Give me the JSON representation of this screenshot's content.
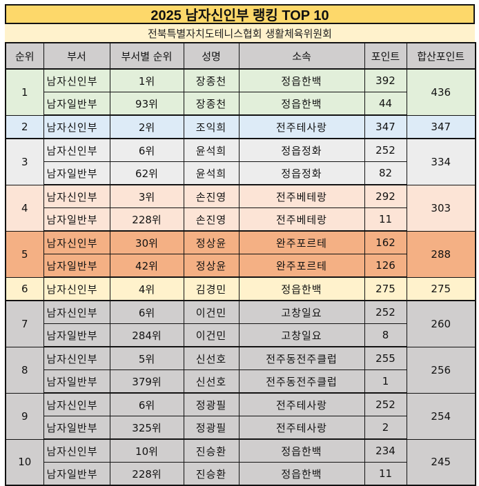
{
  "title": "2025 남자신인부 랭킹 TOP 10",
  "subtitle": "전북특별자치도테니스협회 생활체육위원회",
  "colors": {
    "title_bg": "#fdd86a",
    "subtitle_bg": "#fff2cc",
    "header_bg": "#d0cece",
    "rank1_bg": "#e2efda",
    "rank2_bg": "#ddebf7",
    "rank3_bg": "#ededed",
    "rank4_bg": "#fce4d6",
    "rank5_bg": "#f4b084",
    "rank6_bg": "#fff2cc",
    "rank7to10_bg": "#d0cece"
  },
  "headers": [
    "순위",
    "부서",
    "부서별 순위",
    "성명",
    "소속",
    "포인트",
    "합산포인트"
  ],
  "groups": [
    {
      "rank": "1",
      "total": "436",
      "bg": "#e2efda",
      "rows": [
        {
          "dept": "남자신인부",
          "dept_rank": "1위",
          "name": "장종천",
          "affiliation": "정읍한백",
          "points": "392"
        },
        {
          "dept": "남자일반부",
          "dept_rank": "93위",
          "name": "장종천",
          "affiliation": "정읍한백",
          "points": "44"
        }
      ]
    },
    {
      "rank": "2",
      "total": "347",
      "bg": "#ddebf7",
      "rows": [
        {
          "dept": "남자신인부",
          "dept_rank": "2위",
          "name": "조익희",
          "affiliation": "전주테사랑",
          "points": "347"
        }
      ]
    },
    {
      "rank": "3",
      "total": "334",
      "bg": "#ededed",
      "rows": [
        {
          "dept": "남자신인부",
          "dept_rank": "6위",
          "name": "윤석희",
          "affiliation": "정읍정화",
          "points": "252"
        },
        {
          "dept": "남자일반부",
          "dept_rank": "62위",
          "name": "윤석희",
          "affiliation": "정읍정화",
          "points": "82"
        }
      ]
    },
    {
      "rank": "4",
      "total": "303",
      "bg": "#fce4d6",
      "rows": [
        {
          "dept": "남자신인부",
          "dept_rank": "3위",
          "name": "손진영",
          "affiliation": "전주베테랑",
          "points": "292"
        },
        {
          "dept": "남자일반부",
          "dept_rank": "228위",
          "name": "손진영",
          "affiliation": "전주베테랑",
          "points": "11"
        }
      ]
    },
    {
      "rank": "5",
      "total": "288",
      "bg": "#f4b084",
      "rows": [
        {
          "dept": "남자신인부",
          "dept_rank": "30위",
          "name": "정상윤",
          "affiliation": "완주포르테",
          "points": "162"
        },
        {
          "dept": "남자일반부",
          "dept_rank": "42위",
          "name": "정상윤",
          "affiliation": "완주포르테",
          "points": "126"
        }
      ]
    },
    {
      "rank": "6",
      "total": "275",
      "bg": "#fff2cc",
      "rows": [
        {
          "dept": "남자신인부",
          "dept_rank": "4위",
          "name": "김경민",
          "affiliation": "정읍한백",
          "points": "275"
        }
      ]
    },
    {
      "rank": "7",
      "total": "260",
      "bg": "#d0cece",
      "rows": [
        {
          "dept": "남자신인부",
          "dept_rank": "6위",
          "name": "이건민",
          "affiliation": "고창일요",
          "points": "252"
        },
        {
          "dept": "남자일반부",
          "dept_rank": "284위",
          "name": "이건민",
          "affiliation": "고창일요",
          "points": "8"
        }
      ]
    },
    {
      "rank": "8",
      "total": "256",
      "bg": "#d0cece",
      "rows": [
        {
          "dept": "남자신인부",
          "dept_rank": "5위",
          "name": "신선호",
          "affiliation": "전주동전주클럽",
          "points": "255"
        },
        {
          "dept": "남자일반부",
          "dept_rank": "379위",
          "name": "신선호",
          "affiliation": "전주동전주클럽",
          "points": "1"
        }
      ]
    },
    {
      "rank": "9",
      "total": "254",
      "bg": "#d0cece",
      "rows": [
        {
          "dept": "남자신인부",
          "dept_rank": "6위",
          "name": "정광필",
          "affiliation": "전주테사랑",
          "points": "252"
        },
        {
          "dept": "남자일반부",
          "dept_rank": "325위",
          "name": "정광필",
          "affiliation": "전주테사랑",
          "points": "2"
        }
      ]
    },
    {
      "rank": "10",
      "total": "245",
      "bg": "#d0cece",
      "rows": [
        {
          "dept": "남자신인부",
          "dept_rank": "10위",
          "name": "진승환",
          "affiliation": "정읍한백",
          "points": "234"
        },
        {
          "dept": "남자일반부",
          "dept_rank": "228위",
          "name": "진승환",
          "affiliation": "정읍한백",
          "points": "11"
        }
      ]
    }
  ]
}
